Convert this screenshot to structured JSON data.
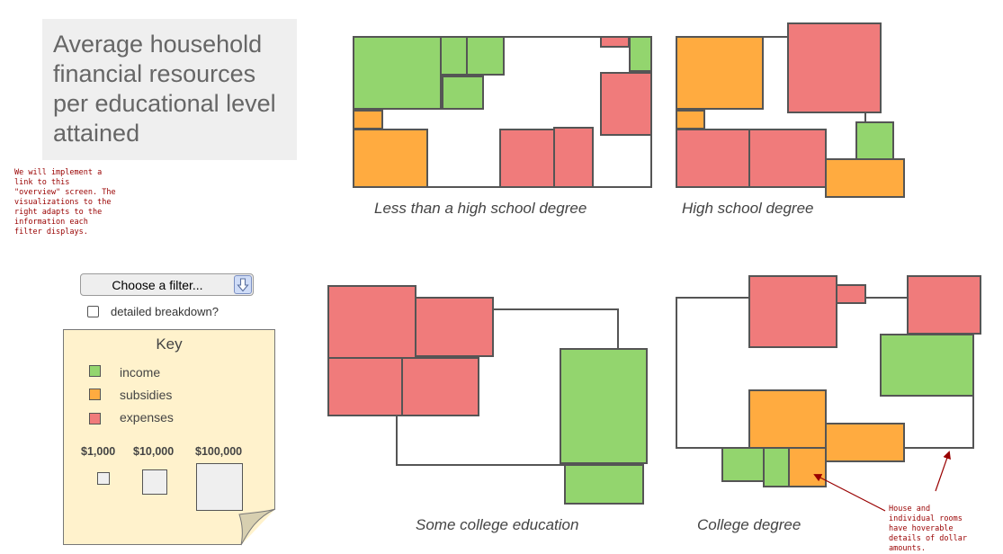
{
  "title": "Average household financial resources per educational level attained",
  "notes": {
    "overview": "We will implement a\nlink to this\n\"overview\" screen. The\nvisualizations to the\nright adapts to the\ninformation each\nfilter displays.",
    "hover": "House and\nindividual rooms\nhave hoverable\ndetails of dollar\namounts."
  },
  "filter": {
    "label": "Choose a filter...",
    "arrow_icon": "down-arrow-icon"
  },
  "checkbox": {
    "label": "detailed breakdown?",
    "checked": false
  },
  "key": {
    "title": "Key",
    "items": [
      {
        "label": "income",
        "color": "#93d56e"
      },
      {
        "label": "subsidies",
        "color": "#ffab40"
      },
      {
        "label": "expenses",
        "color": "#f07b7b"
      }
    ],
    "scale": [
      "$1,000",
      "$10,000",
      "$100,000"
    ]
  },
  "colors": {
    "income": "#93d56e",
    "subsidies": "#ffab40",
    "expenses": "#f07b7b",
    "outline": "#555555"
  },
  "categories": {
    "less_than_hs": "Less than a high school degree",
    "high_school": "High school degree",
    "some_college": "Some college education",
    "college": "College degree"
  }
}
